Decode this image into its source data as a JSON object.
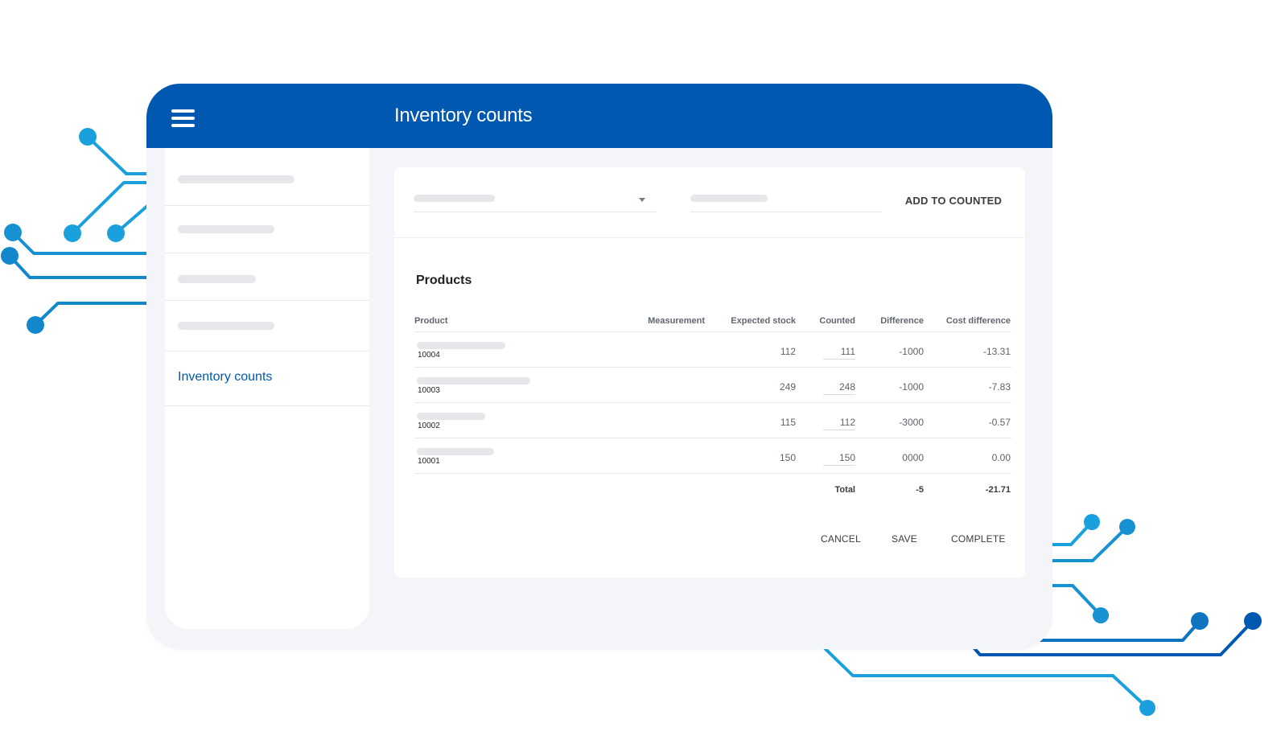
{
  "colors": {
    "primary": "#0058b0",
    "accent_light": "#1aa0dc",
    "accent_dark": "#0058b0",
    "app_background": "#f3f5f9",
    "placeholder": "#e5e7eb"
  },
  "header": {
    "title": "Inventory counts",
    "menu_icon": "hamburger-menu-icon"
  },
  "sidebar": {
    "items": [
      {
        "label": ""
      },
      {
        "label": ""
      },
      {
        "label": ""
      },
      {
        "label": ""
      },
      {
        "label": "Inventory counts",
        "active": true
      }
    ]
  },
  "filters": {
    "select_value": "",
    "select_icon": "caret-down-icon",
    "text_value": "",
    "add_button": "ADD TO COUNTED"
  },
  "products": {
    "title": "Products",
    "columns": [
      "Product",
      "Measurement",
      "Expected stock",
      "Counted",
      "Difference",
      "Cost difference"
    ],
    "rows": [
      {
        "code": "10004",
        "measurement": "",
        "expected": "112",
        "counted": "111",
        "difference": "-1000",
        "cost_difference": "-13.31"
      },
      {
        "code": "10003",
        "measurement": "",
        "expected": "249",
        "counted": "248",
        "difference": "-1000",
        "cost_difference": "-7.83"
      },
      {
        "code": "10002",
        "measurement": "",
        "expected": "115",
        "counted": "112",
        "difference": "-3000",
        "cost_difference": "-0.57"
      },
      {
        "code": "10001",
        "measurement": "",
        "expected": "150",
        "counted": "150",
        "difference": "0000",
        "cost_difference": "0.00"
      }
    ],
    "total": {
      "label": "Total",
      "difference": "-5",
      "cost_difference": "-21.71"
    }
  },
  "actions": {
    "cancel": "CANCEL",
    "save": "SAVE",
    "complete": "COMPLETE"
  }
}
